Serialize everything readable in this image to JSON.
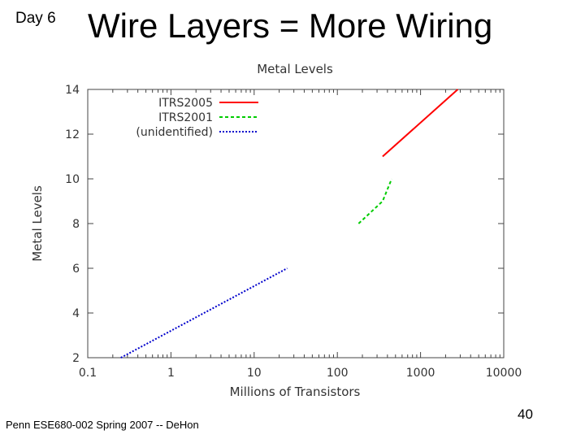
{
  "slide": {
    "day_label": "Day 6",
    "title": "Wire Layers = More Wiring",
    "footer": "Penn ESE680-002 Spring 2007 -- DeHon",
    "page_number": "40"
  },
  "chart_data": {
    "type": "line",
    "title": "Metal Levels",
    "xlabel": "Millions of Transistors",
    "ylabel": "Metal Levels",
    "xscale": "log",
    "xlim": [
      0.1,
      10000
    ],
    "ylim": [
      2,
      14
    ],
    "xticks": [
      0.1,
      1,
      10,
      100,
      1000,
      10000
    ],
    "xtick_labels": [
      "0.1",
      "1",
      "10",
      "100",
      "1000",
      "10000"
    ],
    "yticks": [
      2,
      4,
      6,
      8,
      10,
      12,
      14
    ],
    "ytick_labels": [
      "2",
      "4",
      "6",
      "8",
      "10",
      "12",
      "14"
    ],
    "grid": false,
    "legend_position": "top-left",
    "series": [
      {
        "name": "ITRS2005",
        "color": "#ff0000",
        "dash": "solid",
        "x": [
          350,
          2800
        ],
        "y": [
          11,
          14
        ]
      },
      {
        "name": "ITRS2001",
        "color": "#00cc00",
        "dash": "dashed",
        "x": [
          180,
          350,
          450
        ],
        "y": [
          8,
          9,
          10
        ]
      },
      {
        "name": "(unidentified)",
        "color": "#0000cc",
        "dash": "dotted",
        "x": [
          0.25,
          25
        ],
        "y": [
          2,
          6
        ]
      }
    ]
  }
}
